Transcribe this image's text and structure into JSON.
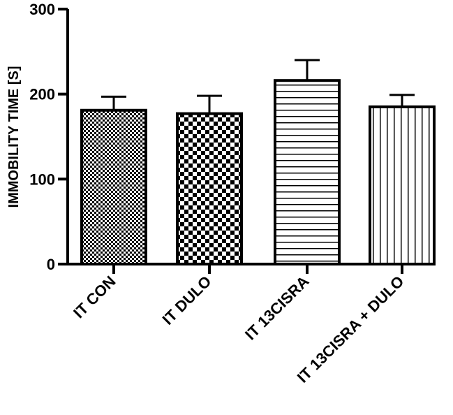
{
  "chart_data": {
    "type": "bar",
    "title": "",
    "xlabel": "",
    "ylabel": "IMMOBILITY TIME [S]",
    "ylim": [
      0,
      300
    ],
    "yticks": [
      0,
      100,
      200,
      300
    ],
    "categories": [
      "IT CON",
      "IT DULO",
      "IT 13CISRA",
      "IT 13CISRA + DULO"
    ],
    "values": [
      181,
      177,
      216,
      185
    ],
    "errors": [
      16,
      21,
      24,
      14
    ],
    "patterns": [
      "fine-checker",
      "coarse-checker",
      "horizontal-lines",
      "vertical-lines"
    ],
    "bar_color": "#000000",
    "grid": false
  }
}
